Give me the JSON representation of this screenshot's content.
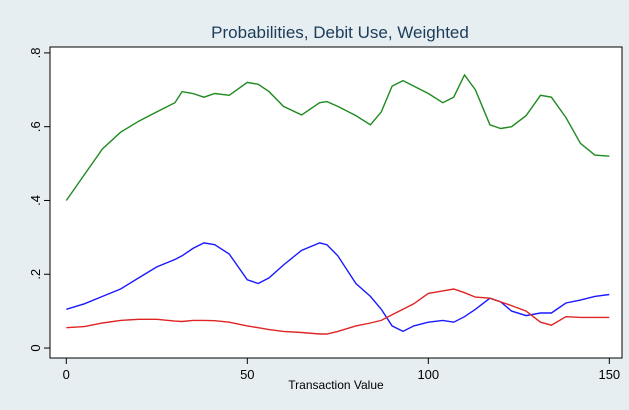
{
  "chart_data": {
    "type": "line",
    "title": "Probabilities, Debit Use, Weighted",
    "xlabel": "Transaction Value",
    "x": [
      0,
      5,
      10,
      15,
      20,
      25,
      30,
      32,
      35,
      38,
      41,
      45,
      50,
      53,
      56,
      60,
      65,
      70,
      72,
      75,
      80,
      84,
      87,
      90,
      93,
      96,
      100,
      104,
      107,
      110,
      113,
      117,
      120,
      123,
      127,
      131,
      134,
      138,
      142,
      146,
      150
    ],
    "series": [
      {
        "color": "#1f8a1f",
        "values": [
          0.4,
          0.47,
          0.54,
          0.585,
          0.615,
          0.64,
          0.665,
          0.695,
          0.69,
          0.68,
          0.69,
          0.685,
          0.72,
          0.715,
          0.695,
          0.655,
          0.632,
          0.665,
          0.668,
          0.655,
          0.63,
          0.605,
          0.64,
          0.71,
          0.725,
          0.71,
          0.69,
          0.665,
          0.68,
          0.74,
          0.7,
          0.605,
          0.595,
          0.6,
          0.63,
          0.685,
          0.68,
          0.625,
          0.555,
          0.523,
          0.52
        ]
      },
      {
        "color": "#1a1aff",
        "values": [
          0.105,
          0.12,
          0.14,
          0.16,
          0.19,
          0.22,
          0.24,
          0.25,
          0.27,
          0.285,
          0.28,
          0.255,
          0.185,
          0.175,
          0.19,
          0.225,
          0.265,
          0.285,
          0.28,
          0.25,
          0.175,
          0.14,
          0.105,
          0.06,
          0.045,
          0.06,
          0.07,
          0.075,
          0.07,
          0.085,
          0.105,
          0.135,
          0.125,
          0.1,
          0.088,
          0.095,
          0.095,
          0.122,
          0.13,
          0.14,
          0.145
        ]
      },
      {
        "color": "#e02424",
        "values": [
          0.055,
          0.058,
          0.068,
          0.075,
          0.078,
          0.078,
          0.073,
          0.072,
          0.075,
          0.075,
          0.074,
          0.07,
          0.06,
          0.055,
          0.05,
          0.045,
          0.042,
          0.038,
          0.038,
          0.045,
          0.06,
          0.068,
          0.075,
          0.09,
          0.105,
          0.12,
          0.148,
          0.155,
          0.16,
          0.15,
          0.138,
          0.135,
          0.125,
          0.115,
          0.1,
          0.07,
          0.062,
          0.085,
          0.083,
          0.083,
          0.083
        ]
      }
    ],
    "xlim": [
      -4.5,
      153.5
    ],
    "ylim": [
      -0.027,
      0.816
    ],
    "xticks": [
      0,
      50,
      100,
      150
    ],
    "yticks": [
      0,
      {
        "value": 0.2,
        "label": ".2"
      },
      {
        "value": 0.4,
        "label": ".4"
      },
      {
        "value": 0.6,
        "label": ".6"
      },
      {
        "value": 0.8,
        "label": ".8"
      }
    ]
  }
}
